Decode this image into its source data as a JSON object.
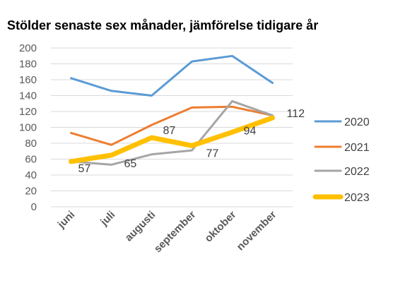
{
  "chart_data": {
    "type": "line",
    "title": "Stölder senaste sex månader, jämförelse tidigare år",
    "xlabel": "",
    "ylabel": "",
    "categories": [
      "juni",
      "juli",
      "augusti",
      "september",
      "oktober",
      "november"
    ],
    "ylim": [
      0,
      200
    ],
    "yticks": [
      0,
      20,
      40,
      60,
      80,
      100,
      120,
      140,
      160,
      180,
      200
    ],
    "grid": true,
    "legend_position": "right",
    "series": [
      {
        "name": "2020",
        "color": "#5B9BD5",
        "values": [
          162,
          146,
          140,
          183,
          190,
          156
        ]
      },
      {
        "name": "2021",
        "color": "#ED7D31",
        "values": [
          93,
          78,
          103,
          125,
          126,
          115
        ]
      },
      {
        "name": "2022",
        "color": "#A5A5A5",
        "values": [
          57,
          53,
          66,
          71,
          133,
          115
        ]
      },
      {
        "name": "2023",
        "color": "#FFC000",
        "values": [
          57,
          65,
          87,
          77,
          94,
          112
        ],
        "data_labels": [
          "57",
          "65",
          "87",
          "77",
          "94",
          "112"
        ]
      }
    ]
  }
}
